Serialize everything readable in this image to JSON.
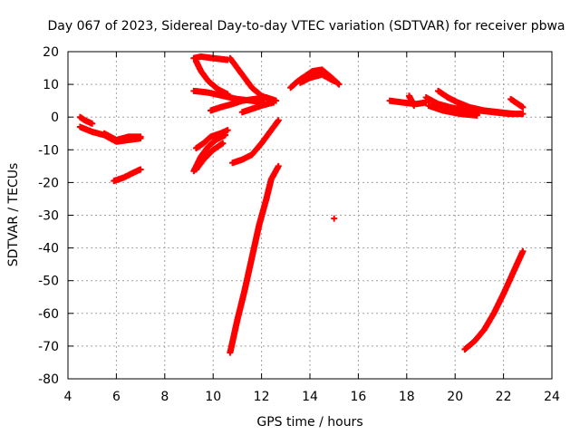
{
  "chart_data": {
    "type": "scatter",
    "title": "Day 067 of 2023, Sidereal Day-to-day VTEC variation (SDTVAR) for receiver pbwa",
    "xlabel": "GPS time / hours",
    "ylabel": "SDTVAR / TECUs",
    "xlim": [
      4,
      24
    ],
    "ylim": [
      -80,
      20
    ],
    "xticks": [
      4,
      6,
      8,
      10,
      12,
      14,
      16,
      18,
      20,
      22,
      24
    ],
    "yticks": [
      -80,
      -70,
      -60,
      -50,
      -40,
      -30,
      -20,
      -10,
      0,
      10,
      20
    ],
    "grid": true,
    "marker": "+",
    "color": "#ff0000",
    "tracks": [
      [
        [
          4.5,
          0.0
        ],
        [
          4.7,
          -1.0
        ],
        [
          5.0,
          -2.0
        ]
      ],
      [
        [
          4.5,
          -3.0
        ],
        [
          5.0,
          -4.5
        ],
        [
          5.5,
          -5.5
        ],
        [
          6.0,
          -7.5
        ],
        [
          6.5,
          -7.0
        ],
        [
          7.0,
          -6.5
        ]
      ],
      [
        [
          5.5,
          -5.0
        ],
        [
          6.0,
          -7.0
        ],
        [
          6.5,
          -6.0
        ],
        [
          7.0,
          -6.0
        ]
      ],
      [
        [
          5.9,
          -19.5
        ],
        [
          6.3,
          -18.5
        ],
        [
          6.7,
          -17.0
        ],
        [
          7.0,
          -16.0
        ]
      ],
      [
        [
          9.2,
          18.0
        ],
        [
          9.5,
          18.5
        ],
        [
          10.0,
          18.0
        ],
        [
          10.6,
          17.5
        ]
      ],
      [
        [
          9.3,
          17.0
        ],
        [
          9.5,
          14.0
        ],
        [
          9.8,
          11.0
        ],
        [
          10.2,
          8.5
        ],
        [
          10.6,
          7.0
        ]
      ],
      [
        [
          9.2,
          8.0
        ],
        [
          9.8,
          7.5
        ],
        [
          10.4,
          6.5
        ],
        [
          11.0,
          5.5
        ],
        [
          11.6,
          5.0
        ],
        [
          12.1,
          4.5
        ]
      ],
      [
        [
          10.7,
          18.0
        ],
        [
          11.0,
          15.0
        ],
        [
          11.3,
          12.0
        ],
        [
          11.6,
          9.0
        ],
        [
          12.0,
          6.5
        ],
        [
          12.5,
          5.0
        ]
      ],
      [
        [
          9.9,
          2.0
        ],
        [
          10.3,
          3.0
        ],
        [
          10.8,
          4.0
        ],
        [
          11.2,
          5.0
        ],
        [
          11.7,
          5.5
        ],
        [
          12.2,
          6.0
        ],
        [
          12.6,
          5.0
        ]
      ],
      [
        [
          11.2,
          1.5
        ],
        [
          11.6,
          2.5
        ],
        [
          12.0,
          3.5
        ],
        [
          12.5,
          4.5
        ]
      ],
      [
        [
          9.3,
          -9.5
        ],
        [
          9.6,
          -8.0
        ],
        [
          9.9,
          -6.0
        ],
        [
          10.3,
          -5.0
        ],
        [
          10.6,
          -4.0
        ]
      ],
      [
        [
          9.2,
          -16.5
        ],
        [
          9.5,
          -12.0
        ],
        [
          9.8,
          -9.0
        ],
        [
          10.1,
          -7.0
        ],
        [
          10.5,
          -5.5
        ]
      ],
      [
        [
          9.3,
          -16.0
        ],
        [
          9.6,
          -13.0
        ],
        [
          10.0,
          -10.0
        ],
        [
          10.4,
          -8.0
        ]
      ],
      [
        [
          10.8,
          -14.0
        ],
        [
          11.2,
          -13.0
        ],
        [
          11.6,
          -11.5
        ],
        [
          12.0,
          -8.0
        ],
        [
          12.4,
          -4.0
        ],
        [
          12.7,
          -1.0
        ]
      ],
      [
        [
          10.7,
          -72.0
        ],
        [
          11.0,
          -62.0
        ],
        [
          11.3,
          -53.0
        ],
        [
          11.6,
          -43.0
        ],
        [
          11.9,
          -33.0
        ],
        [
          12.2,
          -25.0
        ],
        [
          12.4,
          -19.0
        ],
        [
          12.7,
          -15.0
        ]
      ],
      [
        [
          13.2,
          9.0
        ],
        [
          13.5,
          11.0
        ],
        [
          13.8,
          12.5
        ],
        [
          14.1,
          14.0
        ],
        [
          14.5,
          14.5
        ],
        [
          14.9,
          12.0
        ],
        [
          15.2,
          10.0
        ]
      ],
      [
        [
          13.6,
          10.5
        ],
        [
          14.0,
          12.0
        ],
        [
          14.5,
          13.0
        ],
        [
          15.0,
          11.0
        ]
      ],
      [
        [
          15.0,
          -31.0
        ]
      ],
      [
        [
          17.3,
          5.0
        ],
        [
          17.8,
          4.5
        ],
        [
          18.4,
          4.0
        ],
        [
          18.8,
          4.5
        ]
      ],
      [
        [
          18.1,
          6.5
        ],
        [
          18.2,
          5.0
        ],
        [
          18.3,
          3.5
        ]
      ],
      [
        [
          18.8,
          6.0
        ],
        [
          19.3,
          4.0
        ],
        [
          19.8,
          3.0
        ],
        [
          20.4,
          2.0
        ],
        [
          21.0,
          1.5
        ]
      ],
      [
        [
          18.9,
          3.5
        ],
        [
          19.5,
          2.0
        ],
        [
          20.2,
          1.0
        ],
        [
          20.9,
          0.5
        ]
      ],
      [
        [
          19.3,
          8.0
        ],
        [
          19.7,
          6.0
        ],
        [
          20.1,
          4.5
        ],
        [
          20.6,
          3.0
        ],
        [
          21.2,
          2.0
        ],
        [
          21.8,
          1.5
        ],
        [
          22.4,
          1.0
        ]
      ],
      [
        [
          20.5,
          2.5
        ],
        [
          21.0,
          2.0
        ],
        [
          21.6,
          1.5
        ],
        [
          22.2,
          1.0
        ],
        [
          22.8,
          1.0
        ]
      ],
      [
        [
          22.3,
          5.5
        ],
        [
          22.6,
          4.0
        ],
        [
          22.8,
          3.0
        ]
      ],
      [
        [
          20.4,
          -71.0
        ],
        [
          20.8,
          -68.5
        ],
        [
          21.2,
          -65.0
        ],
        [
          21.6,
          -60.0
        ],
        [
          22.0,
          -54.0
        ],
        [
          22.4,
          -47.5
        ],
        [
          22.8,
          -41.0
        ]
      ]
    ]
  }
}
